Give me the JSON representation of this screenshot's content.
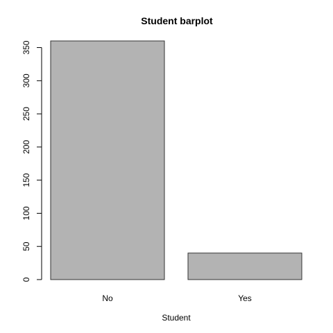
{
  "chart_data": {
    "type": "bar",
    "title": "Student barplot",
    "xlabel": "Student",
    "ylabel": "",
    "categories": [
      "No",
      "Yes"
    ],
    "values": [
      360,
      40
    ],
    "ylim": [
      0,
      360
    ],
    "yticks": [
      "0",
      "50",
      "100",
      "150",
      "200",
      "250",
      "300",
      "350"
    ],
    "bar_fill": "#b3b3b3",
    "bar_stroke": "#333333",
    "grid": false,
    "legend": "none"
  }
}
